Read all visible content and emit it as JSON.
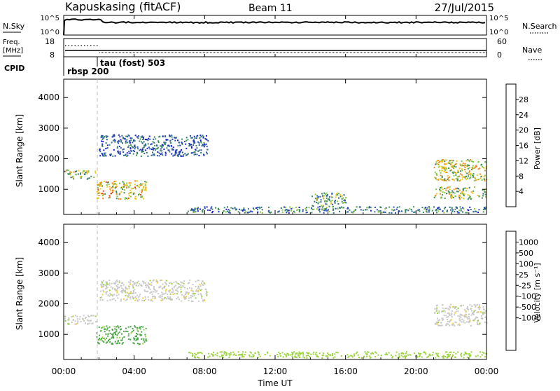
{
  "header": {
    "site": "Kapuskasing (fitACF)",
    "beam": "Beam 11",
    "date": "27/Jul/2015"
  },
  "top_panels": {
    "nsky_label": "N.Sky",
    "nsky_ticks": [
      "10^5",
      "10^0"
    ],
    "nsearch_label": "N.Search",
    "nsearch_ticks": [
      "10^5",
      "10^0"
    ],
    "freq_label": "Freq.",
    "freq_unit": "[MHz]",
    "freq_ticks": [
      "18",
      "8"
    ],
    "nave_label": "Nave",
    "nave_ticks": [
      "60",
      "0"
    ],
    "cpid_label": "CPID",
    "cpid_annotations": [
      "rbsp 200",
      "tau (fost) 503"
    ]
  },
  "colors": {
    "power_scale": [
      "#1b1bdc",
      "#2a4fb0",
      "#2e6f86",
      "#3f8f5c",
      "#86c83c",
      "#f2c418",
      "#f08a1a",
      "#e63d12",
      "#d10000"
    ],
    "velocity_scale": [
      "#1a3fd6",
      "#2a63b8",
      "#2f7a6e",
      "#4aa544",
      "#9ad43a",
      "#c8c8c8",
      "#f6d228",
      "#f3a51c",
      "#ea6a14",
      "#e02d10",
      "#cc0000"
    ]
  },
  "chart_data": [
    {
      "type": "heatmap",
      "title": "Power",
      "ylabel": "Slant Range [km]",
      "xlabel": "",
      "ylim": [
        180,
        4600
      ],
      "yticks": [
        "4000",
        "3000",
        "2000",
        "1000"
      ],
      "colorbar": {
        "label": "Power [dB]",
        "ticks": [
          "28",
          "24",
          "20",
          "16",
          "12",
          "8",
          "4"
        ],
        "range": [
          0,
          32
        ]
      },
      "features": [
        {
          "x_start": "00:00",
          "x_end": "01:50",
          "range_km": [
            1350,
            1650
          ],
          "value_db": 18
        },
        {
          "x_start": "01:50",
          "x_end": "04:40",
          "range_km": [
            700,
            1300
          ],
          "value_db": 22
        },
        {
          "x_start": "02:00",
          "x_end": "08:10",
          "range_km": [
            2100,
            2800
          ],
          "value_db": 8
        },
        {
          "x_start": "07:00",
          "x_end": "23:59",
          "range_km": [
            250,
            450
          ],
          "value_db": 10
        },
        {
          "x_start": "14:00",
          "x_end": "16:00",
          "range_km": [
            350,
            900
          ],
          "value_db": 14
        },
        {
          "x_start": "21:00",
          "x_end": "23:59",
          "range_km": [
            1300,
            2000
          ],
          "value_db": 20
        },
        {
          "x_start": "21:00",
          "x_end": "23:59",
          "range_km": [
            700,
            1100
          ],
          "value_db": 18
        }
      ]
    },
    {
      "type": "heatmap",
      "title": "Velocity",
      "ylabel": "Slant Range [km]",
      "xlabel": "Time UT",
      "ylim": [
        180,
        4600
      ],
      "yticks": [
        "4000",
        "3000",
        "2000",
        "1000"
      ],
      "xticks": [
        "00:00",
        "04:00",
        "08:00",
        "12:00",
        "16:00",
        "20:00",
        "00:00"
      ],
      "colorbar": {
        "label": "Velocity [m s⁻¹]",
        "ticks": [
          "1000",
          "500",
          "100",
          "25",
          "-25",
          "-100",
          "-500",
          "-1000"
        ]
      },
      "features": [
        {
          "x_start": "00:00",
          "x_end": "01:50",
          "range_km": [
            1350,
            1650
          ],
          "value_ms": 0
        },
        {
          "x_start": "02:00",
          "x_end": "08:10",
          "range_km": [
            2100,
            2800
          ],
          "value_ms": 0
        },
        {
          "x_start": "01:50",
          "x_end": "04:40",
          "range_km": [
            700,
            1300
          ],
          "value_ms": 120
        },
        {
          "x_start": "07:00",
          "x_end": "23:59",
          "range_km": [
            250,
            450
          ],
          "value_ms": 60
        },
        {
          "x_start": "21:00",
          "x_end": "23:59",
          "range_km": [
            1300,
            2000
          ],
          "value_ms": 0
        }
      ]
    }
  ]
}
